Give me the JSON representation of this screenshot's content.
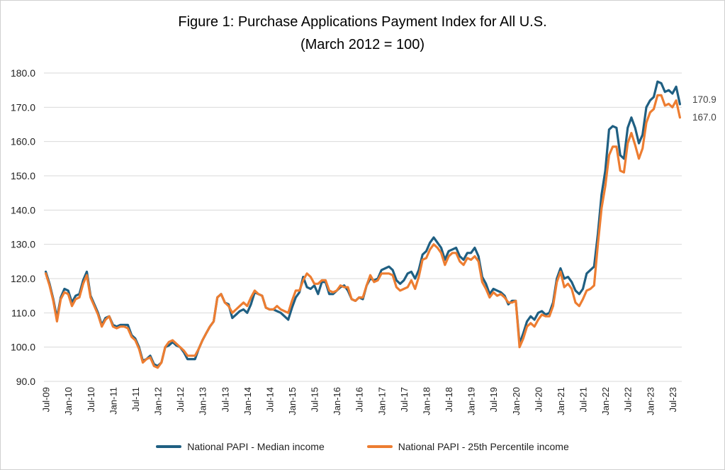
{
  "chart_data": {
    "type": "line",
    "title": "Figure 1: Purchase Applications Payment Index for All U.S.",
    "subtitle": "(March 2012 = 100)",
    "xlabel": "",
    "ylabel": "",
    "ylim": [
      90,
      180
    ],
    "yticks": [
      "90.0",
      "100.0",
      "110.0",
      "120.0",
      "130.0",
      "140.0",
      "150.0",
      "160.0",
      "170.0",
      "180.0"
    ],
    "xticks": [
      "Jul-09",
      "Jan-10",
      "Jul-10",
      "Jan-11",
      "Jul-11",
      "Jan-12",
      "Jul-12",
      "Jan-13",
      "Jul-13",
      "Jan-14",
      "Jul-14",
      "Jan-15",
      "Jul-15",
      "Jan-16",
      "Jul-16",
      "Jan-17",
      "Jul-17",
      "Jan-18",
      "Jul-18",
      "Jan-19",
      "Jul-19",
      "Jan-20",
      "Jul-20",
      "Jan-21",
      "Jul-21",
      "Jan-22",
      "Jul-22",
      "Jan-23",
      "Jul-23"
    ],
    "start": "Jul-09",
    "grid": "horizontal",
    "legend_position": "bottom",
    "series": [
      {
        "name": "National PAPI - Median income",
        "color": "#1f5f82",
        "end_label": "170.9",
        "values": [
          122.0,
          118.5,
          114.0,
          108.5,
          114.5,
          117.0,
          116.5,
          113.0,
          115.0,
          115.5,
          119.5,
          122.0,
          115.0,
          112.5,
          110.0,
          106.5,
          108.5,
          109.0,
          106.5,
          106.0,
          106.5,
          106.5,
          106.5,
          103.5,
          102.5,
          100.0,
          96.0,
          96.5,
          97.5,
          95.0,
          94.5,
          95.5,
          100.0,
          100.5,
          101.5,
          100.5,
          100.0,
          98.5,
          96.5,
          96.5,
          96.5,
          99.5,
          102.0,
          104.0,
          106.0,
          107.5,
          114.5,
          115.5,
          113.0,
          112.5,
          108.5,
          109.5,
          110.5,
          111.0,
          110.0,
          112.5,
          116.0,
          115.5,
          115.0,
          111.5,
          111.0,
          111.0,
          110.5,
          110.0,
          109.0,
          108.0,
          111.5,
          114.5,
          116.0,
          120.5,
          117.5,
          117.0,
          118.0,
          115.5,
          119.0,
          119.0,
          115.5,
          115.5,
          116.5,
          117.5,
          118.0,
          116.5,
          114.0,
          113.5,
          114.5,
          114.0,
          118.0,
          120.0,
          119.5,
          120.0,
          122.5,
          123.0,
          123.5,
          122.5,
          119.5,
          118.5,
          119.5,
          121.5,
          122.0,
          120.0,
          122.5,
          127.0,
          128.0,
          130.5,
          132.0,
          130.5,
          129.0,
          125.5,
          128.0,
          128.5,
          129.0,
          126.5,
          125.5,
          127.5,
          127.5,
          129.0,
          126.5,
          120.5,
          118.5,
          115.5,
          117.0,
          116.5,
          116.0,
          115.0,
          112.5,
          113.5,
          113.5,
          101.0,
          104.0,
          107.5,
          109.0,
          108.0,
          110.0,
          110.5,
          109.5,
          110.0,
          113.0,
          120.0,
          123.0,
          120.0,
          120.5,
          119.0,
          116.5,
          115.5,
          117.0,
          121.5,
          122.5,
          123.5,
          133.0,
          144.5,
          151.5,
          163.5,
          164.5,
          164.0,
          156.0,
          155.0,
          164.0,
          167.0,
          164.0,
          159.5,
          162.0,
          170.0,
          172.0,
          173.0,
          177.5,
          177.0,
          174.5,
          175.0,
          174.0,
          176.0,
          170.9
        ]
      },
      {
        "name": "National PAPI - 25th Percentile income",
        "color": "#ed7d31",
        "end_label": "167.0",
        "values": [
          121.5,
          118.0,
          113.5,
          107.5,
          114.0,
          116.0,
          115.5,
          112.0,
          114.0,
          114.5,
          118.5,
          121.0,
          114.5,
          112.0,
          109.5,
          106.0,
          108.0,
          109.0,
          106.0,
          105.5,
          106.0,
          106.0,
          105.5,
          103.0,
          102.0,
          99.5,
          95.5,
          96.5,
          97.0,
          94.5,
          94.0,
          95.5,
          100.0,
          101.5,
          102.0,
          101.0,
          100.0,
          99.0,
          97.5,
          97.5,
          97.5,
          99.5,
          102.0,
          104.0,
          106.0,
          107.5,
          114.5,
          115.5,
          113.0,
          112.0,
          110.0,
          111.0,
          112.0,
          113.0,
          112.0,
          114.5,
          116.5,
          115.5,
          115.0,
          111.5,
          111.0,
          111.0,
          112.0,
          111.0,
          110.5,
          110.0,
          113.5,
          116.5,
          116.5,
          119.5,
          121.5,
          120.5,
          118.5,
          118.5,
          119.5,
          119.5,
          116.5,
          116.0,
          116.5,
          118.0,
          117.5,
          117.5,
          114.0,
          113.5,
          114.5,
          114.5,
          118.0,
          121.0,
          119.0,
          119.5,
          121.5,
          121.5,
          121.5,
          121.0,
          117.5,
          116.5,
          117.0,
          117.5,
          119.5,
          117.0,
          120.5,
          125.5,
          126.0,
          128.5,
          130.0,
          129.0,
          127.5,
          124.0,
          126.5,
          127.5,
          127.5,
          125.0,
          124.0,
          126.0,
          125.5,
          126.5,
          125.0,
          119.0,
          117.0,
          114.5,
          116.0,
          115.0,
          115.5,
          114.5,
          113.0,
          113.0,
          113.5,
          100.0,
          102.5,
          106.0,
          107.0,
          106.0,
          108.0,
          109.5,
          109.0,
          109.0,
          112.0,
          119.0,
          122.0,
          117.5,
          118.5,
          117.0,
          113.0,
          112.0,
          114.0,
          116.5,
          117.0,
          118.0,
          130.0,
          140.5,
          147.0,
          156.0,
          158.5,
          158.5,
          151.5,
          151.0,
          159.5,
          162.5,
          159.0,
          155.0,
          158.0,
          165.5,
          168.5,
          169.5,
          173.5,
          173.5,
          170.5,
          171.0,
          170.0,
          172.0,
          167.0
        ]
      }
    ]
  }
}
